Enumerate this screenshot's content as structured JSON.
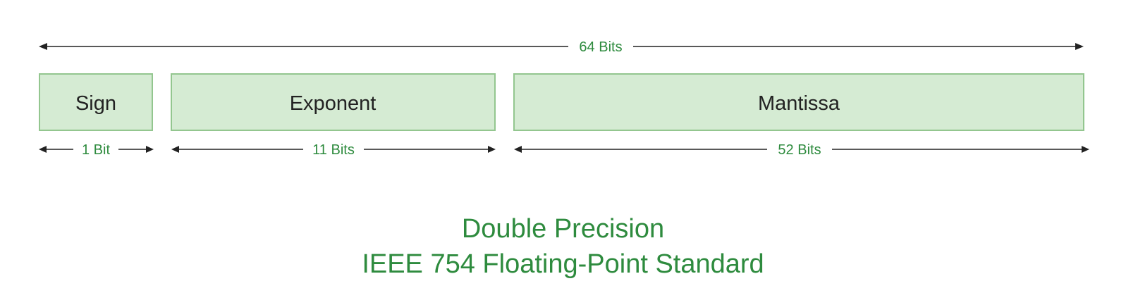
{
  "colors": {
    "box_fill": "#d5ebd3",
    "box_border": "#93c68f",
    "label_green": "#2e8b3e",
    "arrow": "#222222"
  },
  "total": {
    "label": "64 Bits"
  },
  "fields": [
    {
      "name": "Sign",
      "bits_label": "1 Bit"
    },
    {
      "name": "Exponent",
      "bits_label": "11 Bits"
    },
    {
      "name": "Mantissa",
      "bits_label": "52 Bits"
    }
  ],
  "caption": {
    "line1": "Double Precision",
    "line2": "IEEE 754 Floating-Point Standard"
  }
}
